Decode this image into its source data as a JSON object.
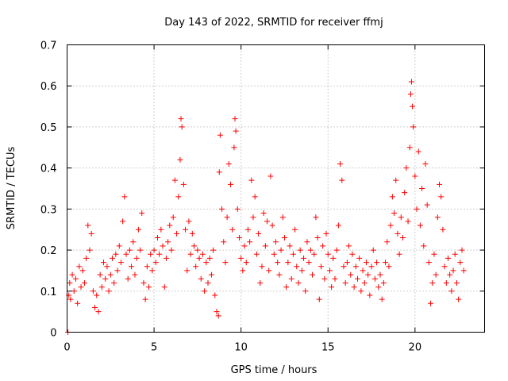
{
  "chart_data": {
    "type": "scatter",
    "title": "Day 143 of 2022, SRMTID for receiver ffmj",
    "xlabel": "GPS time / hours",
    "ylabel": "SRMTID / TECUs",
    "xlim": [
      0,
      24
    ],
    "ylim": [
      0,
      0.7
    ],
    "x_ticks": [
      0,
      5,
      10,
      15,
      20
    ],
    "x_tick_labels": [
      "0",
      "5",
      "10",
      "15",
      "20"
    ],
    "y_ticks": [
      0,
      0.1,
      0.2,
      0.3,
      0.4,
      0.5,
      0.6,
      0.7
    ],
    "y_tick_labels": [
      "0",
      "0.1",
      "0.2",
      "0.3",
      "0.4",
      "0.5",
      "0.6",
      "0.7"
    ],
    "grid": true,
    "marker": "plus",
    "series": [
      {
        "name": "SRMTID",
        "color": "#ff0000",
        "points": [
          [
            0.05,
            0.0
          ],
          [
            0.1,
            0.09
          ],
          [
            0.15,
            0.12
          ],
          [
            0.2,
            0.08
          ],
          [
            0.3,
            0.14
          ],
          [
            0.4,
            0.1
          ],
          [
            0.5,
            0.13
          ],
          [
            0.6,
            0.07
          ],
          [
            0.7,
            0.16
          ],
          [
            0.8,
            0.11
          ],
          [
            0.9,
            0.15
          ],
          [
            1.0,
            0.12
          ],
          [
            1.1,
            0.18
          ],
          [
            1.2,
            0.26
          ],
          [
            1.3,
            0.2
          ],
          [
            1.4,
            0.24
          ],
          [
            1.5,
            0.1
          ],
          [
            1.6,
            0.06
          ],
          [
            1.7,
            0.09
          ],
          [
            1.8,
            0.05
          ],
          [
            1.9,
            0.14
          ],
          [
            2.0,
            0.11
          ],
          [
            2.1,
            0.17
          ],
          [
            2.2,
            0.13
          ],
          [
            2.3,
            0.16
          ],
          [
            2.4,
            0.1
          ],
          [
            2.5,
            0.14
          ],
          [
            2.6,
            0.18
          ],
          [
            2.7,
            0.12
          ],
          [
            2.8,
            0.19
          ],
          [
            2.9,
            0.15
          ],
          [
            3.0,
            0.21
          ],
          [
            3.1,
            0.17
          ],
          [
            3.2,
            0.27
          ],
          [
            3.3,
            0.33
          ],
          [
            3.4,
            0.19
          ],
          [
            3.5,
            0.13
          ],
          [
            3.6,
            0.2
          ],
          [
            3.7,
            0.16
          ],
          [
            3.8,
            0.22
          ],
          [
            3.9,
            0.14
          ],
          [
            4.0,
            0.18
          ],
          [
            4.1,
            0.25
          ],
          [
            4.2,
            0.2
          ],
          [
            4.3,
            0.29
          ],
          [
            4.4,
            0.12
          ],
          [
            4.5,
            0.08
          ],
          [
            4.6,
            0.16
          ],
          [
            4.7,
            0.11
          ],
          [
            4.8,
            0.19
          ],
          [
            4.9,
            0.15
          ],
          [
            5.0,
            0.2
          ],
          [
            5.1,
            0.17
          ],
          [
            5.2,
            0.23
          ],
          [
            5.3,
            0.19
          ],
          [
            5.4,
            0.25
          ],
          [
            5.5,
            0.21
          ],
          [
            5.6,
            0.11
          ],
          [
            5.7,
            0.18
          ],
          [
            5.8,
            0.22
          ],
          [
            5.9,
            0.26
          ],
          [
            6.0,
            0.2
          ],
          [
            6.1,
            0.28
          ],
          [
            6.2,
            0.37
          ],
          [
            6.3,
            0.24
          ],
          [
            6.4,
            0.33
          ],
          [
            6.5,
            0.42
          ],
          [
            6.55,
            0.52
          ],
          [
            6.6,
            0.5
          ],
          [
            6.7,
            0.36
          ],
          [
            6.8,
            0.25
          ],
          [
            6.9,
            0.15
          ],
          [
            7.0,
            0.27
          ],
          [
            7.1,
            0.19
          ],
          [
            7.2,
            0.24
          ],
          [
            7.3,
            0.21
          ],
          [
            7.4,
            0.16
          ],
          [
            7.5,
            0.2
          ],
          [
            7.6,
            0.18
          ],
          [
            7.7,
            0.13
          ],
          [
            7.8,
            0.19
          ],
          [
            7.9,
            0.1
          ],
          [
            8.0,
            0.17
          ],
          [
            8.1,
            0.12
          ],
          [
            8.2,
            0.18
          ],
          [
            8.3,
            0.14
          ],
          [
            8.4,
            0.2
          ],
          [
            8.5,
            0.09
          ],
          [
            8.6,
            0.05
          ],
          [
            8.7,
            0.04
          ],
          [
            8.75,
            0.39
          ],
          [
            8.8,
            0.48
          ],
          [
            8.9,
            0.3
          ],
          [
            9.0,
            0.22
          ],
          [
            9.1,
            0.17
          ],
          [
            9.2,
            0.28
          ],
          [
            9.3,
            0.41
          ],
          [
            9.4,
            0.36
          ],
          [
            9.5,
            0.25
          ],
          [
            9.6,
            0.45
          ],
          [
            9.65,
            0.52
          ],
          [
            9.7,
            0.49
          ],
          [
            9.8,
            0.3
          ],
          [
            9.9,
            0.23
          ],
          [
            10.0,
            0.18
          ],
          [
            10.1,
            0.15
          ],
          [
            10.2,
            0.21
          ],
          [
            10.3,
            0.17
          ],
          [
            10.4,
            0.25
          ],
          [
            10.5,
            0.22
          ],
          [
            10.6,
            0.37
          ],
          [
            10.7,
            0.28
          ],
          [
            10.8,
            0.33
          ],
          [
            10.9,
            0.19
          ],
          [
            11.0,
            0.24
          ],
          [
            11.1,
            0.12
          ],
          [
            11.2,
            0.16
          ],
          [
            11.3,
            0.29
          ],
          [
            11.4,
            0.21
          ],
          [
            11.5,
            0.27
          ],
          [
            11.6,
            0.15
          ],
          [
            11.7,
            0.38
          ],
          [
            11.8,
            0.26
          ],
          [
            11.9,
            0.19
          ],
          [
            12.0,
            0.22
          ],
          [
            12.1,
            0.17
          ],
          [
            12.2,
            0.14
          ],
          [
            12.3,
            0.2
          ],
          [
            12.4,
            0.28
          ],
          [
            12.5,
            0.23
          ],
          [
            12.6,
            0.11
          ],
          [
            12.7,
            0.17
          ],
          [
            12.8,
            0.21
          ],
          [
            12.9,
            0.13
          ],
          [
            13.0,
            0.19
          ],
          [
            13.1,
            0.25
          ],
          [
            13.2,
            0.16
          ],
          [
            13.3,
            0.12
          ],
          [
            13.4,
            0.2
          ],
          [
            13.5,
            0.15
          ],
          [
            13.6,
            0.18
          ],
          [
            13.7,
            0.1
          ],
          [
            13.8,
            0.22
          ],
          [
            13.9,
            0.17
          ],
          [
            14.0,
            0.2
          ],
          [
            14.1,
            0.14
          ],
          [
            14.2,
            0.19
          ],
          [
            14.3,
            0.28
          ],
          [
            14.4,
            0.23
          ],
          [
            14.5,
            0.08
          ],
          [
            14.6,
            0.16
          ],
          [
            14.7,
            0.21
          ],
          [
            14.8,
            0.13
          ],
          [
            14.9,
            0.24
          ],
          [
            15.0,
            0.19
          ],
          [
            15.1,
            0.15
          ],
          [
            15.2,
            0.11
          ],
          [
            15.3,
            0.18
          ],
          [
            15.4,
            0.13
          ],
          [
            15.5,
            0.2
          ],
          [
            15.6,
            0.26
          ],
          [
            15.7,
            0.41
          ],
          [
            15.8,
            0.37
          ],
          [
            15.9,
            0.16
          ],
          [
            16.0,
            0.12
          ],
          [
            16.1,
            0.17
          ],
          [
            16.2,
            0.21
          ],
          [
            16.3,
            0.14
          ],
          [
            16.4,
            0.19
          ],
          [
            16.5,
            0.11
          ],
          [
            16.6,
            0.16
          ],
          [
            16.7,
            0.13
          ],
          [
            16.8,
            0.18
          ],
          [
            16.9,
            0.1
          ],
          [
            17.0,
            0.15
          ],
          [
            17.1,
            0.12
          ],
          [
            17.2,
            0.17
          ],
          [
            17.3,
            0.14
          ],
          [
            17.4,
            0.09
          ],
          [
            17.5,
            0.16
          ],
          [
            17.6,
            0.2
          ],
          [
            17.7,
            0.13
          ],
          [
            17.8,
            0.17
          ],
          [
            17.9,
            0.11
          ],
          [
            18.0,
            0.14
          ],
          [
            18.1,
            0.08
          ],
          [
            18.2,
            0.12
          ],
          [
            18.3,
            0.17
          ],
          [
            18.4,
            0.22
          ],
          [
            18.5,
            0.16
          ],
          [
            18.6,
            0.26
          ],
          [
            18.7,
            0.33
          ],
          [
            18.8,
            0.29
          ],
          [
            18.9,
            0.37
          ],
          [
            19.0,
            0.24
          ],
          [
            19.1,
            0.19
          ],
          [
            19.2,
            0.28
          ],
          [
            19.3,
            0.23
          ],
          [
            19.4,
            0.34
          ],
          [
            19.5,
            0.4
          ],
          [
            19.6,
            0.27
          ],
          [
            19.7,
            0.45
          ],
          [
            19.75,
            0.58
          ],
          [
            19.8,
            0.61
          ],
          [
            19.85,
            0.55
          ],
          [
            19.9,
            0.5
          ],
          [
            20.0,
            0.38
          ],
          [
            20.1,
            0.3
          ],
          [
            20.2,
            0.44
          ],
          [
            20.3,
            0.26
          ],
          [
            20.4,
            0.35
          ],
          [
            20.5,
            0.21
          ],
          [
            20.6,
            0.41
          ],
          [
            20.7,
            0.31
          ],
          [
            20.8,
            0.17
          ],
          [
            20.9,
            0.07
          ],
          [
            21.0,
            0.12
          ],
          [
            21.1,
            0.19
          ],
          [
            21.2,
            0.14
          ],
          [
            21.3,
            0.28
          ],
          [
            21.4,
            0.36
          ],
          [
            21.5,
            0.33
          ],
          [
            21.6,
            0.25
          ],
          [
            21.7,
            0.16
          ],
          [
            21.8,
            0.12
          ],
          [
            21.9,
            0.18
          ],
          [
            22.0,
            0.14
          ],
          [
            22.1,
            0.1
          ],
          [
            22.2,
            0.15
          ],
          [
            22.3,
            0.19
          ],
          [
            22.4,
            0.12
          ],
          [
            22.5,
            0.08
          ],
          [
            22.6,
            0.17
          ],
          [
            22.7,
            0.2
          ],
          [
            22.8,
            0.15
          ]
        ]
      }
    ]
  }
}
